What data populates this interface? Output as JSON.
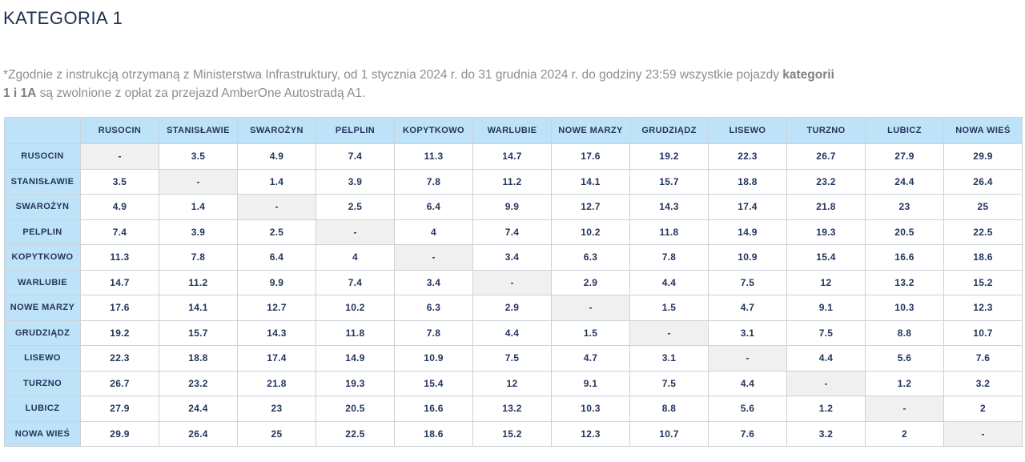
{
  "title": "KATEGORIA 1",
  "note": {
    "line1_text": "*Zgodnie z instrukcją otrzymaną z Ministerstwa Infrastruktury, od 1 stycznia 2024 r.  do 31 grudnia 2024 r. do godziny 23:59 wszystkie pojazdy ",
    "line1_bold": "kategorii",
    "line2_bold": "1 i 1A",
    "line2_text": " są zwolnione z opłat za przejazd AmberOne Autostradą A1."
  },
  "table": {
    "corner_label": "",
    "empty_cell_symbol": "-",
    "stations": [
      "RUSOCIN",
      "STANISŁAWIE",
      "SWAROŻYN",
      "PELPLIN",
      "KOPYTKOWO",
      "WARLUBIE",
      "NOWE MARZY",
      "GRUDZIĄDZ",
      "LISEWO",
      "TURZNO",
      "LUBICZ",
      "NOWA WIEŚ"
    ],
    "matrix": [
      [
        "-",
        "3.5",
        "4.9",
        "7.4",
        "11.3",
        "14.7",
        "17.6",
        "19.2",
        "22.3",
        "26.7",
        "27.9",
        "29.9"
      ],
      [
        "3.5",
        "-",
        "1.4",
        "3.9",
        "7.8",
        "11.2",
        "14.1",
        "15.7",
        "18.8",
        "23.2",
        "24.4",
        "26.4"
      ],
      [
        "4.9",
        "1.4",
        "-",
        "2.5",
        "6.4",
        "9.9",
        "12.7",
        "14.3",
        "17.4",
        "21.8",
        "23",
        "25"
      ],
      [
        "7.4",
        "3.9",
        "2.5",
        "-",
        "4",
        "7.4",
        "10.2",
        "11.8",
        "14.9",
        "19.3",
        "20.5",
        "22.5"
      ],
      [
        "11.3",
        "7.8",
        "6.4",
        "4",
        "-",
        "3.4",
        "6.3",
        "7.8",
        "10.9",
        "15.4",
        "16.6",
        "18.6"
      ],
      [
        "14.7",
        "11.2",
        "9.9",
        "7.4",
        "3.4",
        "-",
        "2.9",
        "4.4",
        "7.5",
        "12",
        "13.2",
        "15.2"
      ],
      [
        "17.6",
        "14.1",
        "12.7",
        "10.2",
        "6.3",
        "2.9",
        "-",
        "1.5",
        "4.7",
        "9.1",
        "10.3",
        "12.3"
      ],
      [
        "19.2",
        "15.7",
        "14.3",
        "11.8",
        "7.8",
        "4.4",
        "1.5",
        "-",
        "3.1",
        "7.5",
        "8.8",
        "10.7"
      ],
      [
        "22.3",
        "18.8",
        "17.4",
        "14.9",
        "10.9",
        "7.5",
        "4.7",
        "3.1",
        "-",
        "4.4",
        "5.6",
        "7.6"
      ],
      [
        "26.7",
        "23.2",
        "21.8",
        "19.3",
        "15.4",
        "12",
        "9.1",
        "7.5",
        "4.4",
        "-",
        "1.2",
        "3.2"
      ],
      [
        "27.9",
        "24.4",
        "23",
        "20.5",
        "16.6",
        "13.2",
        "10.3",
        "8.8",
        "5.6",
        "1.2",
        "-",
        "2"
      ],
      [
        "29.9",
        "26.4",
        "25",
        "22.5",
        "18.6",
        "15.2",
        "12.3",
        "10.7",
        "7.6",
        "3.2",
        "2",
        "-"
      ]
    ]
  },
  "colors": {
    "header_blue": "#bee3f8",
    "diagonal_gray": "#f0f0f0",
    "text_navy": "#22355c",
    "title_navy": "#1e2d4f",
    "note_gray": "#8a8f94",
    "border": "#ccd2d8"
  }
}
